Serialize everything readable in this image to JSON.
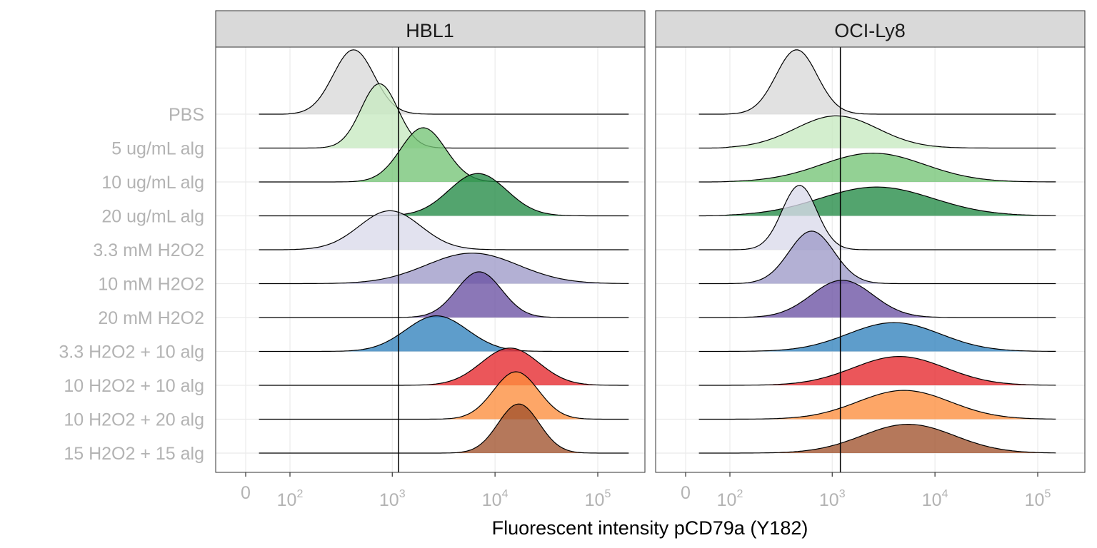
{
  "chart_data": {
    "type": "ridgeline",
    "xlabel": "Fluorescent intensity pCD79a (Y182)",
    "x_scale": "biexponential (log-like)",
    "x_ticks": [
      {
        "base": "0",
        "exp": ""
      },
      {
        "base": "10",
        "exp": "2"
      },
      {
        "base": "10",
        "exp": "3"
      },
      {
        "base": "10",
        "exp": "4"
      },
      {
        "base": "10",
        "exp": "5"
      }
    ],
    "tick_values": [
      0,
      100,
      1000,
      10000,
      100000
    ],
    "xlim": [
      -50,
      300000
    ],
    "grid": true,
    "categories": [
      "PBS",
      "5 ug/mL alg",
      "10 ug/mL alg",
      "20 ug/mL alg",
      "3.3 mM H2O2",
      "10 mM H2O2",
      "20 mM H2O2",
      "3.3 H2O2 + 10 alg",
      "10 H2O2 + 10 alg",
      "10 H2O2 + 20 alg",
      "15 H2O2 + 15 alg"
    ],
    "colors": [
      "#d9d9d9",
      "#c7e9c0",
      "#74c476",
      "#238b45",
      "#dadaeb",
      "#9e9ac8",
      "#6a51a3",
      "#3182bd",
      "#e6262b",
      "#fd8d3c",
      "#a0522d"
    ],
    "panels": [
      {
        "title": "HBL1",
        "vline_x": 1150,
        "curves": [
          {
            "category": "PBS",
            "peak_x": 420,
            "peak_height": 1.9,
            "spread": 0.2,
            "min_x": 15,
            "max_x": 200000
          },
          {
            "category": "5 ug/mL alg",
            "peak_x": 750,
            "peak_height": 1.9,
            "spread": 0.18,
            "min_x": 15,
            "max_x": 200000
          },
          {
            "category": "10 ug/mL alg",
            "peak_x": 2000,
            "peak_height": 1.6,
            "spread": 0.22,
            "min_x": 15,
            "max_x": 200000
          },
          {
            "category": "20 ug/mL alg",
            "peak_x": 6800,
            "peak_height": 1.25,
            "spread": 0.28,
            "min_x": 15,
            "max_x": 200000
          },
          {
            "category": "3.3 mM H2O2",
            "peak_x": 950,
            "peak_height": 1.15,
            "spread": 0.3,
            "min_x": 15,
            "max_x": 200000
          },
          {
            "category": "10 mM H2O2",
            "peak_x": 6000,
            "peak_height": 0.9,
            "spread": 0.45,
            "min_x": 15,
            "max_x": 200000
          },
          {
            "category": "20 mM H2O2",
            "peak_x": 7000,
            "peak_height": 1.35,
            "spread": 0.22,
            "min_x": 15,
            "max_x": 200000
          },
          {
            "category": "3.3 H2O2 + 10 alg",
            "peak_x": 2700,
            "peak_height": 1.05,
            "spread": 0.3,
            "min_x": 15,
            "max_x": 200000
          },
          {
            "category": "10 H2O2 + 10 alg",
            "peak_x": 14000,
            "peak_height": 1.1,
            "spread": 0.28,
            "min_x": 15,
            "max_x": 200000
          },
          {
            "category": "10 H2O2 + 20 alg",
            "peak_x": 16000,
            "peak_height": 1.4,
            "spread": 0.22,
            "min_x": 15,
            "max_x": 200000
          },
          {
            "category": "15 H2O2 + 15 alg",
            "peak_x": 17000,
            "peak_height": 1.45,
            "spread": 0.2,
            "min_x": 15,
            "max_x": 200000
          }
        ]
      },
      {
        "title": "OCI-Ly8",
        "vline_x": 1200,
        "curves": [
          {
            "category": "PBS",
            "peak_x": 450,
            "peak_height": 1.9,
            "spread": 0.2,
            "min_x": 15,
            "max_x": 150000
          },
          {
            "category": "5 ug/mL alg",
            "peak_x": 1100,
            "peak_height": 0.95,
            "spread": 0.4,
            "min_x": 15,
            "max_x": 150000
          },
          {
            "category": "10 ug/mL alg",
            "peak_x": 2500,
            "peak_height": 0.85,
            "spread": 0.5,
            "min_x": 15,
            "max_x": 150000
          },
          {
            "category": "20 ug/mL alg",
            "peak_x": 2700,
            "peak_height": 0.85,
            "spread": 0.55,
            "min_x": 15,
            "max_x": 150000
          },
          {
            "category": "3.3 mM H2O2",
            "peak_x": 480,
            "peak_height": 1.9,
            "spread": 0.17,
            "min_x": 15,
            "max_x": 150000
          },
          {
            "category": "10 mM H2O2",
            "peak_x": 630,
            "peak_height": 1.55,
            "spread": 0.22,
            "min_x": 15,
            "max_x": 150000
          },
          {
            "category": "20 mM H2O2",
            "peak_x": 1250,
            "peak_height": 1.1,
            "spread": 0.3,
            "min_x": 15,
            "max_x": 150000
          },
          {
            "category": "3.3 H2O2 + 10 alg",
            "peak_x": 4000,
            "peak_height": 0.85,
            "spread": 0.45,
            "min_x": 15,
            "max_x": 150000
          },
          {
            "category": "10 H2O2 + 10 alg",
            "peak_x": 4500,
            "peak_height": 0.85,
            "spread": 0.45,
            "min_x": 15,
            "max_x": 150000
          },
          {
            "category": "10 H2O2 + 20 alg",
            "peak_x": 5000,
            "peak_height": 0.85,
            "spread": 0.45,
            "min_x": 15,
            "max_x": 150000
          },
          {
            "category": "15 H2O2 + 15 alg",
            "peak_x": 5500,
            "peak_height": 0.85,
            "spread": 0.45,
            "min_x": 15,
            "max_x": 150000
          }
        ]
      }
    ]
  }
}
